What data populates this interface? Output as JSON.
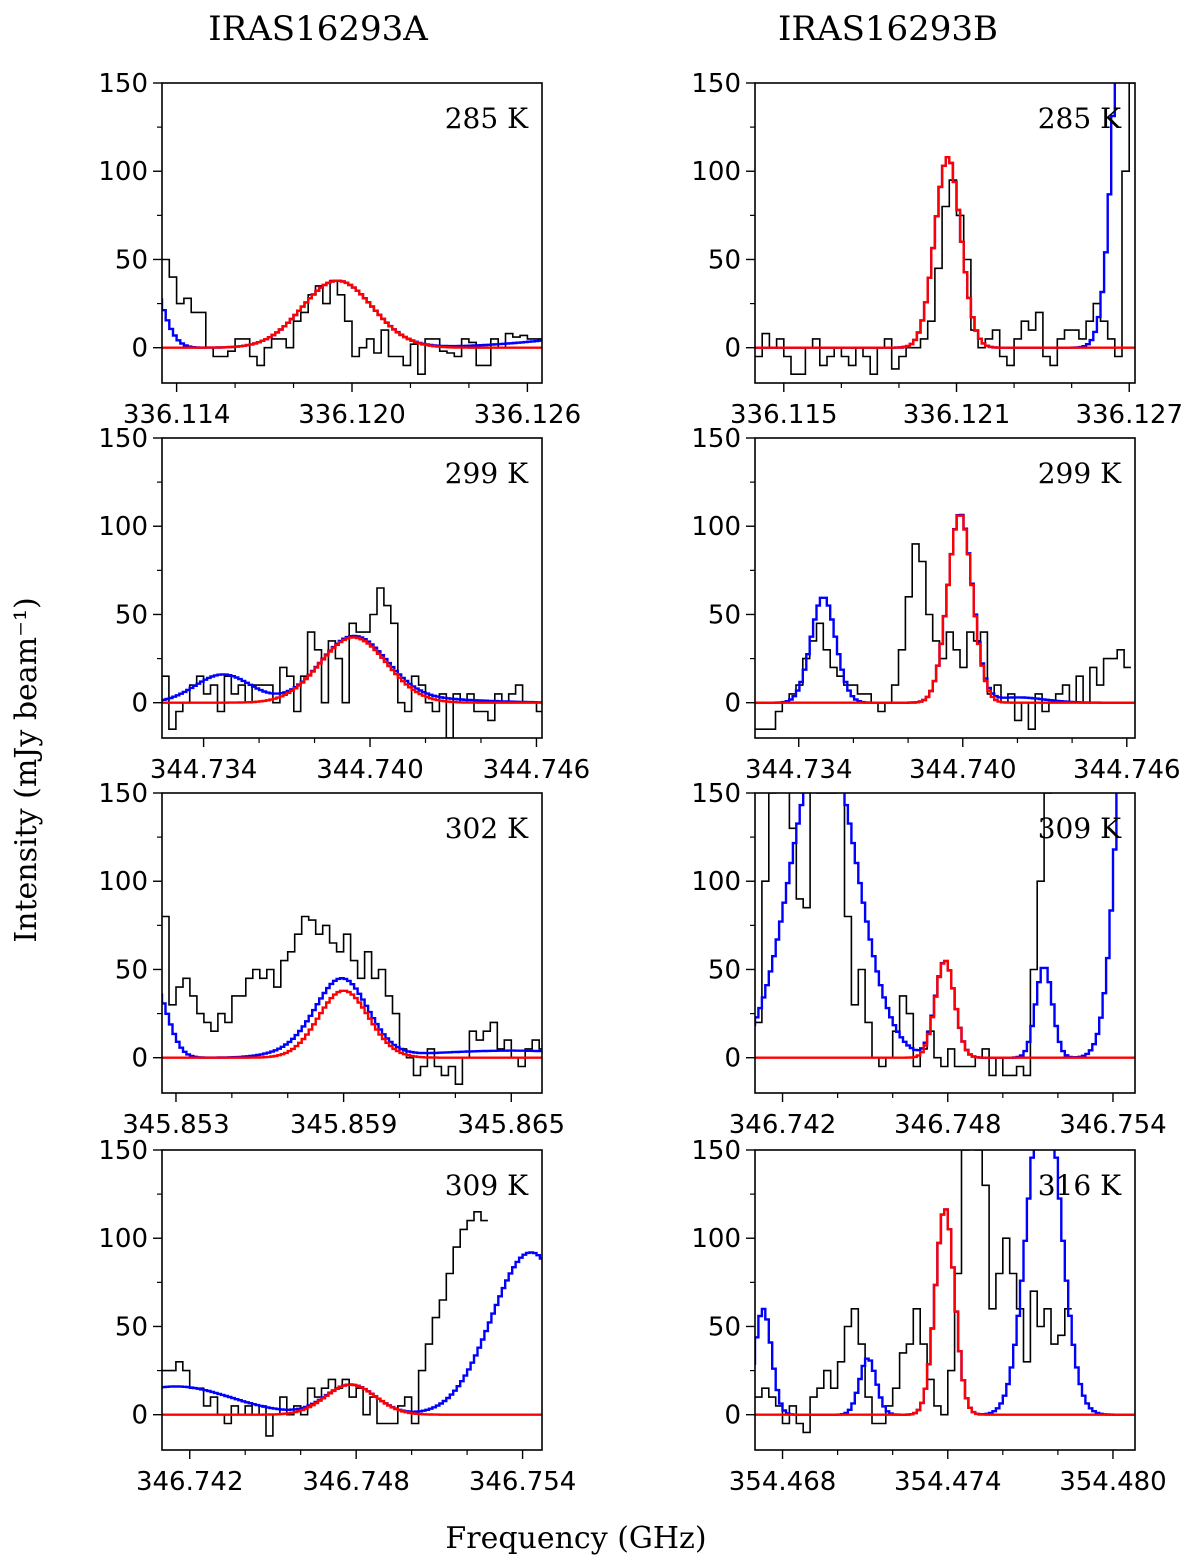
{
  "figure": {
    "columns": [
      "IRAS16293A",
      "IRAS16293B"
    ],
    "xlabel": "Frequency (GHz)",
    "ylabel": "Intensity (mJy beam⁻¹)",
    "colors": {
      "observed": "#000000",
      "model_total": "#0000ff",
      "model_line": "#ff0000"
    }
  },
  "chart_data": [
    {
      "type": "line",
      "source": "IRAS16293A",
      "temperature": "285 K",
      "xlim": [
        336.1135,
        336.1265
      ],
      "ylim": [
        -20,
        150
      ],
      "xticks": [
        "336.114",
        "336.120",
        "336.126"
      ],
      "yticks": [
        "0",
        "50",
        "100",
        "150"
      ],
      "line": {
        "center": 336.1195,
        "peak": 38,
        "sigma": 0.0012
      },
      "blend": [
        {
          "center": 336.113,
          "peak": 40,
          "sigma": 0.0005
        },
        {
          "center": 336.13,
          "peak": 8,
          "sigma": 0.003
        }
      ],
      "observed": {
        "x0": 336.1135,
        "dx": 0.00025,
        "values": [
          50,
          40,
          25,
          28,
          20,
          20,
          0,
          -5,
          -5,
          -2,
          5,
          5,
          -5,
          -10,
          0,
          5,
          5,
          0,
          15,
          20,
          30,
          35,
          25,
          38,
          30,
          15,
          -5,
          0,
          5,
          -3,
          10,
          -5,
          -5,
          -10,
          2,
          -15,
          5,
          5,
          -2,
          -3,
          -5,
          5,
          3,
          -10,
          -10,
          5,
          0,
          8,
          6,
          7,
          5,
          5
        ]
      }
    },
    {
      "type": "line",
      "source": "IRAS16293B",
      "temperature": "285 K",
      "xlim": [
        336.114,
        336.1272
      ],
      "ylim": [
        -20,
        150
      ],
      "xticks": [
        "336.115",
        "336.121",
        "336.127"
      ],
      "yticks": [
        "0",
        "50",
        "100",
        "150"
      ],
      "line": {
        "center": 336.1207,
        "peak": 108,
        "sigma": 0.00045
      },
      "blend": [
        {
          "center": 336.1272,
          "peak": 420,
          "sigma": 0.0005
        }
      ],
      "observed": {
        "x0": 336.114,
        "dx": 0.00025,
        "values": [
          -5,
          8,
          0,
          5,
          -5,
          -15,
          -15,
          0,
          5,
          -10,
          -5,
          0,
          -5,
          -10,
          0,
          -5,
          -15,
          0,
          5,
          -12,
          -5,
          0,
          0,
          5,
          15,
          45,
          80,
          95,
          75,
          50,
          10,
          0,
          5,
          10,
          -5,
          -10,
          5,
          15,
          10,
          20,
          -5,
          -10,
          5,
          10,
          10,
          5,
          15,
          25,
          15,
          5,
          -5,
          100,
          150,
          150
        ]
      }
    },
    {
      "type": "line",
      "source": "IRAS16293A",
      "temperature": "299 K",
      "xlim": [
        344.7325,
        344.7462
      ],
      "ylim": [
        -20,
        150
      ],
      "xticks": [
        "344.734",
        "344.740",
        "344.746"
      ],
      "yticks": [
        "0",
        "50",
        "100",
        "150"
      ],
      "line": {
        "center": 344.7394,
        "peak": 37,
        "sigma": 0.0012
      },
      "blend": [
        {
          "center": 344.7347,
          "peak": 16,
          "sigma": 0.001
        },
        {
          "center": 344.742,
          "peak": 2,
          "sigma": 0.002
        }
      ],
      "observed": {
        "x0": 344.7325,
        "dx": 0.00025,
        "values": [
          15,
          -15,
          -5,
          0,
          10,
          15,
          5,
          10,
          -5,
          15,
          5,
          10,
          0,
          10,
          10,
          10,
          0,
          20,
          15,
          -5,
          15,
          40,
          30,
          0,
          35,
          25,
          0,
          45,
          40,
          40,
          50,
          65,
          55,
          45,
          0,
          -5,
          15,
          10,
          0,
          -5,
          5,
          -20,
          5,
          0,
          5,
          -5,
          -5,
          -10,
          5,
          0,
          5,
          10,
          0,
          0,
          -5
        ]
      }
    },
    {
      "type": "line",
      "source": "IRAS16293B",
      "temperature": "299 K",
      "xlim": [
        344.7324,
        344.7463
      ],
      "ylim": [
        -20,
        150
      ],
      "xticks": [
        "344.734",
        "344.740",
        "344.746"
      ],
      "yticks": [
        "0",
        "50",
        "100",
        "150"
      ],
      "line": {
        "center": 344.7399,
        "peak": 107,
        "sigma": 0.00045
      },
      "blend": [
        {
          "center": 344.7349,
          "peak": 60,
          "sigma": 0.00045
        },
        {
          "center": 344.742,
          "peak": 3,
          "sigma": 0.001
        }
      ],
      "observed": {
        "x0": 344.7324,
        "dx": 0.00025,
        "values": [
          -15,
          -15,
          -15,
          -5,
          0,
          5,
          10,
          25,
          35,
          45,
          30,
          20,
          15,
          10,
          10,
          5,
          5,
          0,
          -5,
          0,
          10,
          30,
          60,
          90,
          80,
          50,
          35,
          25,
          40,
          30,
          20,
          40,
          35,
          40,
          5,
          10,
          0,
          5,
          -10,
          0,
          -15,
          5,
          -5,
          0,
          5,
          10,
          0,
          15,
          0,
          20,
          10,
          25,
          25,
          30,
          20
        ]
      }
    },
    {
      "type": "line",
      "source": "IRAS16293A",
      "temperature": "302 K",
      "xlim": [
        345.8525,
        345.8661
      ],
      "ylim": [
        -20,
        150
      ],
      "xticks": [
        "345.853",
        "345.859",
        "345.865"
      ],
      "yticks": [
        "0",
        "50",
        "100",
        "150"
      ],
      "line": {
        "center": 345.859,
        "peak": 38,
        "sigma": 0.0009
      },
      "blend": [
        {
          "center": 345.8522,
          "peak": 40,
          "sigma": 0.0005
        },
        {
          "center": 345.8582,
          "peak": 8,
          "sigma": 0.0012
        },
        {
          "center": 345.865,
          "peak": 4,
          "sigma": 0.003
        }
      ],
      "observed": {
        "x0": 345.8525,
        "dx": 0.00025,
        "values": [
          80,
          30,
          40,
          45,
          35,
          25,
          20,
          15,
          25,
          20,
          35,
          35,
          45,
          50,
          45,
          50,
          40,
          55,
          60,
          70,
          80,
          78,
          70,
          75,
          65,
          60,
          70,
          55,
          45,
          60,
          45,
          50,
          35,
          25,
          5,
          0,
          -10,
          -5,
          5,
          -5,
          -10,
          -5,
          -15,
          0,
          15,
          10,
          15,
          20,
          5,
          10,
          0,
          -5,
          5,
          10,
          5
        ]
      }
    },
    {
      "type": "line",
      "source": "IRAS16293B",
      "temperature": "309 K",
      "xlim": [
        346.741,
        346.7548
      ],
      "ylim": [
        -20,
        150
      ],
      "xticks": [
        "346.742",
        "346.748",
        "346.754"
      ],
      "yticks": [
        "0",
        "50",
        "100",
        "150"
      ],
      "line": {
        "center": 346.7479,
        "peak": 55,
        "sigma": 0.00035
      },
      "blend": [
        {
          "center": 346.7435,
          "peak": 180,
          "sigma": 0.0012
        },
        {
          "center": 346.7515,
          "peak": 52,
          "sigma": 0.0003
        },
        {
          "center": 346.755,
          "peak": 400,
          "sigma": 0.0006
        }
      ],
      "observed": {
        "x0": 346.741,
        "dx": 0.00025,
        "values": [
          20,
          100,
          150,
          160,
          170,
          130,
          90,
          85,
          170,
          150,
          150,
          150,
          160,
          80,
          30,
          50,
          20,
          0,
          -5,
          0,
          15,
          35,
          25,
          -5,
          5,
          15,
          0,
          -5,
          5,
          -5,
          -5,
          -5,
          0,
          5,
          -10,
          0,
          -10,
          -10,
          -5,
          -10,
          50,
          100,
          150,
          160
        ]
      }
    },
    {
      "type": "line",
      "source": "IRAS16293A",
      "temperature": "309 K",
      "xlim": [
        346.741,
        346.7547
      ],
      "ylim": [
        -20,
        150
      ],
      "xticks": [
        "346.742",
        "346.748",
        "346.754"
      ],
      "yticks": [
        "0",
        "50",
        "100",
        "150"
      ],
      "line": {
        "center": 346.7478,
        "peak": 17,
        "sigma": 0.0009
      },
      "blend": [
        {
          "center": 346.7415,
          "peak": 16,
          "sigma": 0.002
        },
        {
          "center": 346.7543,
          "peak": 92,
          "sigma": 0.0014
        }
      ],
      "observed": {
        "x0": 346.741,
        "dx": 0.00025,
        "values": [
          25,
          25,
          30,
          25,
          15,
          15,
          5,
          10,
          0,
          -5,
          5,
          0,
          5,
          0,
          5,
          -12,
          0,
          10,
          0,
          5,
          0,
          15,
          10,
          15,
          20,
          15,
          20,
          10,
          15,
          0,
          10,
          -5,
          -5,
          -5,
          5,
          10,
          -5,
          25,
          40,
          55,
          65,
          80,
          95,
          105,
          110,
          115,
          110
        ]
      }
    },
    {
      "type": "line",
      "source": "IRAS16293B",
      "temperature": "316 K",
      "xlim": [
        354.467,
        354.4808
      ],
      "ylim": [
        -20,
        150
      ],
      "xticks": [
        "354.468",
        "354.474",
        "354.480"
      ],
      "yticks": [
        "0",
        "50",
        "100",
        "150"
      ],
      "line": {
        "center": 354.4739,
        "peak": 117,
        "sigma": 0.00035
      },
      "blend": [
        {
          "center": 354.4673,
          "peak": 60,
          "sigma": 0.0003
        },
        {
          "center": 354.4711,
          "peak": 32,
          "sigma": 0.0003
        },
        {
          "center": 354.4775,
          "peak": 190,
          "sigma": 0.0006
        }
      ],
      "observed": {
        "x0": 354.467,
        "dx": 0.00025,
        "values": [
          10,
          15,
          10,
          5,
          -5,
          5,
          -5,
          -10,
          10,
          15,
          25,
          15,
          30,
          50,
          60,
          40,
          10,
          -5,
          -5,
          5,
          15,
          35,
          40,
          60,
          40,
          20,
          5,
          0,
          25,
          80,
          150,
          160,
          150,
          130,
          60,
          80,
          100,
          80,
          60,
          30,
          70,
          50,
          60,
          40,
          45,
          60
        ]
      }
    }
  ]
}
